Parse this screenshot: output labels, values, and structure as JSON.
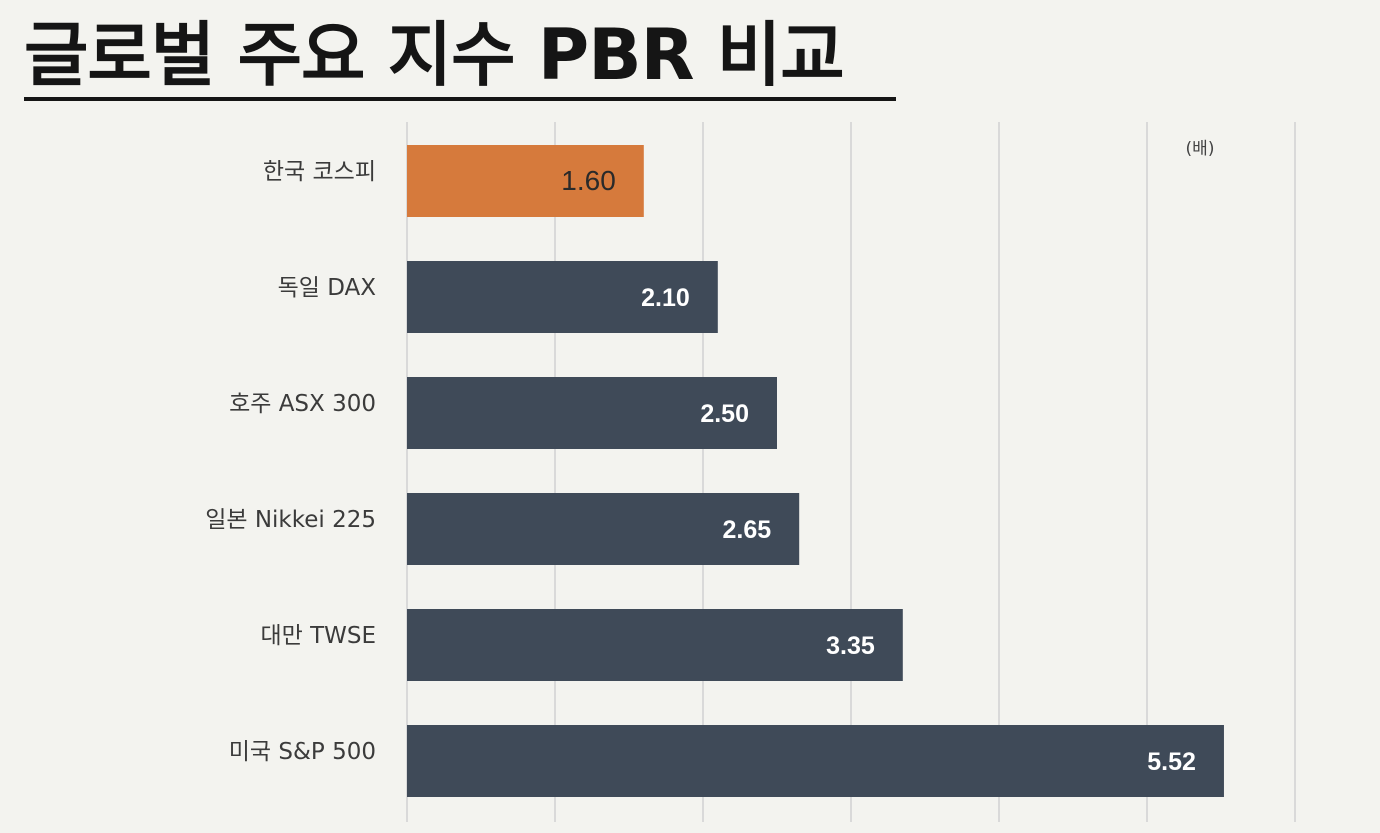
{
  "title": "글로벌 주요 지수 PBR 비교",
  "colors": {
    "background": "#f3f3ef",
    "highlight_bar": "#d67a3c",
    "default_bar": "#3f4a58",
    "gridline": "#d9d9d9"
  },
  "chart_data": {
    "type": "bar",
    "orientation": "horizontal",
    "title": "글로벌 주요 지수 PBR 비교",
    "unit": "(배)",
    "categories": [
      "한국 코스피",
      "독일 DAX",
      "호주 ASX 300",
      "일본 Nikkei 225",
      "대만 TWSE",
      "미국 S&P 500"
    ],
    "values": [
      1.6,
      2.1,
      2.5,
      2.65,
      3.35,
      5.52
    ],
    "value_labels": [
      "1.60",
      "2.10",
      "2.50",
      "2.65",
      "3.35",
      "5.52"
    ],
    "highlight_index": 0,
    "xlim": [
      0,
      6
    ],
    "grid": true
  }
}
